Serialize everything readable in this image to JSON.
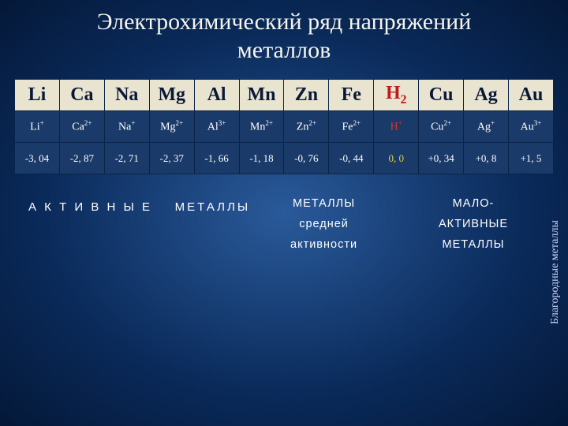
{
  "title_line1": "Электрохимический ряд напряжений",
  "title_line2": "металлов",
  "table": {
    "symbols": [
      "Li",
      "Ca",
      "Na",
      "Mg",
      "Al",
      "Mn",
      "Zn",
      "Fe",
      "H2",
      "Cu",
      "Ag",
      "Au"
    ],
    "ions_base": [
      "Li",
      "Ca",
      "Na",
      "Mg",
      "Al",
      "Mn",
      "Zn",
      "Fe",
      "H",
      "Cu",
      "Ag",
      "Au"
    ],
    "ions_charge": [
      "+",
      "2+",
      "+",
      "2+",
      "3+",
      "2+",
      "2+",
      "2+",
      "+",
      "2+",
      "+",
      "3+"
    ],
    "potentials": [
      "-3, 04",
      "-2, 87",
      "-2, 71",
      "-2, 37",
      "-1, 66",
      "-1, 18",
      "-0, 76",
      "-0, 44",
      "0, 0",
      "+0, 34",
      "+0, 8",
      "+1, 5"
    ],
    "highlight_index": 8,
    "colors": {
      "header_row_bg": "#e8e4d0",
      "data_row_bg": "#1a3a6a",
      "border": "#0a2448",
      "highlight_symbol": "#c01818",
      "highlight_ion": "#e03030",
      "highlight_potential": "#e0d040",
      "text_light": "#ffffff",
      "text_dark": "#0a1838"
    },
    "font_sizes": {
      "symbol": 24,
      "ion": 14,
      "potential": 13
    }
  },
  "labels": {
    "active": {
      "line1": "А К Т И В Н Ы Е",
      "line2": "МЕТАЛЛЫ"
    },
    "medium": {
      "line1": "МЕТАЛЛЫ",
      "line2": "средней",
      "line3": "активности"
    },
    "low": {
      "line1": "МАЛО-",
      "line2": "АКТИВНЫЕ",
      "line3": "МЕТАЛЛЫ"
    },
    "noble": "Благородные металлы"
  }
}
